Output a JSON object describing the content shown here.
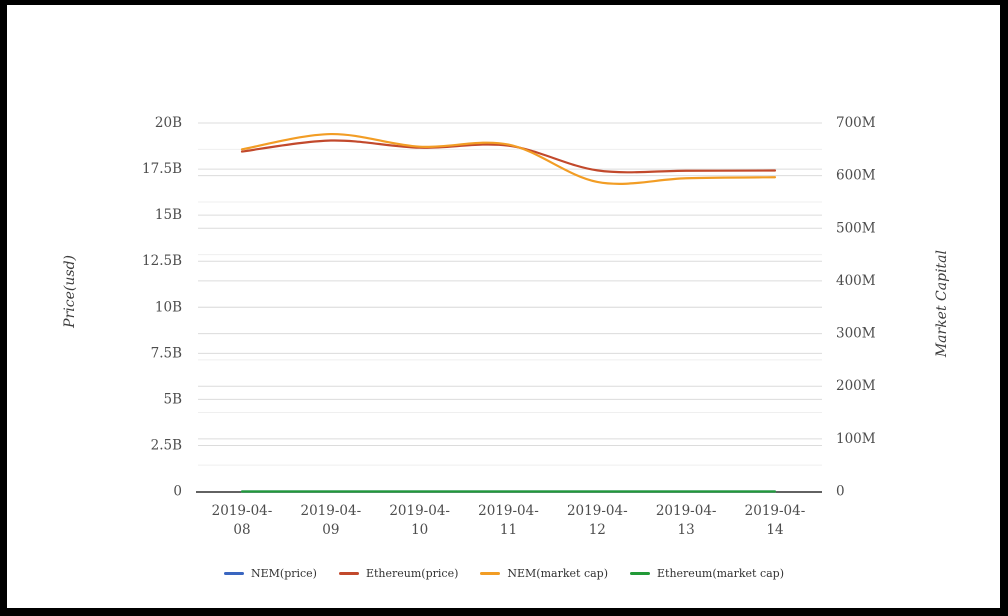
{
  "page": {
    "background_color": "#ffffff",
    "frame_color": "#000000"
  },
  "chart_data": {
    "type": "line",
    "title": "",
    "x_categories": [
      "2019-04-08",
      "2019-04-09",
      "2019-04-10",
      "2019-04-11",
      "2019-04-12",
      "2019-04-13",
      "2019-04-14"
    ],
    "axes": {
      "left": {
        "title": "Price(usd)",
        "min": 0,
        "max": 20,
        "unit": "B",
        "ticks": [
          "0",
          "2.5B",
          "5B",
          "7.5B",
          "10B",
          "12.5B",
          "15B",
          "17.5B",
          "20B"
        ]
      },
      "right": {
        "title": "Market Capital",
        "min": 0,
        "max": 700,
        "unit": "M",
        "ticks": [
          "0",
          "100M",
          "200M",
          "300M",
          "400M",
          "500M",
          "600M",
          "700M"
        ],
        "minor_grid_step": 50
      }
    },
    "series": [
      {
        "name": "NEM(price)",
        "color": "#3a66c0",
        "axis": "left",
        "unit": "B",
        "values": [
          0,
          0,
          0,
          0,
          0,
          0,
          0
        ]
      },
      {
        "name": "Ethereum(price)",
        "color": "#c2492c",
        "axis": "left",
        "unit": "B",
        "values": [
          18.45,
          19.05,
          18.66,
          18.77,
          17.43,
          17.41,
          17.42
        ]
      },
      {
        "name": "NEM(market cap)",
        "color": "#f29d25",
        "axis": "right",
        "unit": "M",
        "values": [
          650,
          679,
          655,
          659,
          588,
          595,
          597
        ]
      },
      {
        "name": "Ethereum(market cap)",
        "color": "#229a38",
        "axis": "right",
        "unit": "M",
        "values": [
          0,
          0,
          0,
          0,
          0,
          0,
          0
        ]
      }
    ],
    "legend_position": "bottom",
    "grid": true,
    "smooth_lines": true,
    "tick_label_color": "#4d4d4d",
    "major_grid_color": "#dcdcdc",
    "minor_grid_color": "#efefef",
    "axis_line_color": "#2f2f2f"
  }
}
